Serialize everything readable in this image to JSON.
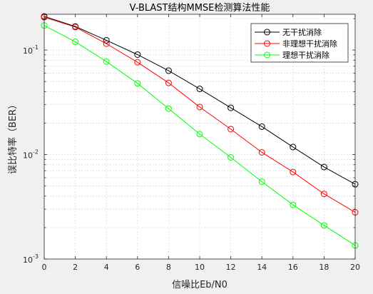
{
  "chart_data": {
    "type": "line",
    "title": "V-BLAST结构MMSE检测算法性能",
    "xlabel": "信噪比Eb/N0",
    "ylabel": "误比特率（BER）",
    "x": [
      0,
      2,
      4,
      6,
      8,
      10,
      12,
      14,
      16,
      18,
      20
    ],
    "xlim": [
      0,
      20
    ],
    "ylim": [
      0.001,
      0.22
    ],
    "yscale": "log",
    "xticks": [
      "0",
      "2",
      "4",
      "6",
      "8",
      "10",
      "12",
      "14",
      "16",
      "18",
      "20"
    ],
    "yticks": [
      {
        "base": "10",
        "exp": "-1",
        "value": 0.1
      },
      {
        "base": "10",
        "exp": "-2",
        "value": 0.01
      },
      {
        "base": "10",
        "exp": "-3",
        "value": 0.001
      }
    ],
    "grid": true,
    "legend_position": "top-right",
    "series": [
      {
        "name": "无干扰消除",
        "color": "#000000",
        "marker": "circle",
        "values": [
          0.21,
          0.168,
          0.124,
          0.0905,
          0.0635,
          0.0425,
          0.028,
          0.0185,
          0.0118,
          0.0076,
          0.0052
        ]
      },
      {
        "name": "非理想干扰消除",
        "color": "#ff0000",
        "marker": "circle",
        "values": [
          0.206,
          0.166,
          0.115,
          0.0765,
          0.0485,
          0.0285,
          0.0175,
          0.0105,
          0.0068,
          0.0042,
          0.0028
        ]
      },
      {
        "name": "理想干扰消除",
        "color": "#00ff00",
        "marker": "circle",
        "values": [
          0.172,
          0.12,
          0.0775,
          0.048,
          0.0275,
          0.0157,
          0.0094,
          0.0055,
          0.0033,
          0.0021,
          0.00135
        ]
      }
    ]
  }
}
